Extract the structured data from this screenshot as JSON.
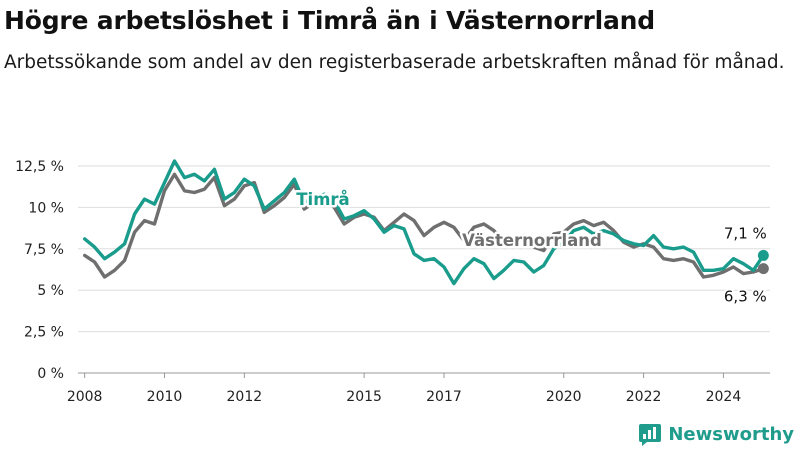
{
  "header": {
    "title": "Högre arbetslöshet i Timrå än i Västernorrland",
    "subtitle": "Arbetssökande som andel av den registerbaserade arbetskraften månad för månad."
  },
  "brand": {
    "name": "Newsworthy",
    "logo_icon": "bar-chart-icon",
    "color": "#1f9c8c"
  },
  "chart_data": {
    "type": "line",
    "title": "Högre arbetslöshet i Timrå än i Västernorrland",
    "subtitle": "Arbetssökande som andel av den registerbaserade arbetskraften månad för månad.",
    "xlabel": "",
    "ylabel": "",
    "ylim": [
      0,
      12.5
    ],
    "xlim": [
      "2007-11",
      "2025-03"
    ],
    "y_ticks": [
      {
        "value": 0,
        "label": "0 %"
      },
      {
        "value": 2.5,
        "label": "2,5 %"
      },
      {
        "value": 5,
        "label": "5 %"
      },
      {
        "value": 7.5,
        "label": "7,5 %"
      },
      {
        "value": 10,
        "label": "10 %"
      },
      {
        "value": 12.5,
        "label": "12,5 %"
      }
    ],
    "x_ticks": [
      {
        "value": "2008-01",
        "label": "2008"
      },
      {
        "value": "2010-01",
        "label": "2010"
      },
      {
        "value": "2012-01",
        "label": "2012"
      },
      {
        "value": "2015-01",
        "label": "2015"
      },
      {
        "value": "2017-01",
        "label": "2017"
      },
      {
        "value": "2020-01",
        "label": "2020"
      },
      {
        "value": "2022-01",
        "label": "2022"
      },
      {
        "value": "2024-01",
        "label": "2024"
      }
    ],
    "grid": true,
    "legend": "direct labels",
    "series": [
      {
        "name": "Västernorrland",
        "color": "#6f6f6f",
        "end_label": "6,3 %",
        "points": [
          [
            "2008-01",
            7.1
          ],
          [
            "2008-04",
            6.7
          ],
          [
            "2008-07",
            5.8
          ],
          [
            "2008-10",
            6.2
          ],
          [
            "2009-01",
            6.8
          ],
          [
            "2009-04",
            8.5
          ],
          [
            "2009-07",
            9.2
          ],
          [
            "2009-10",
            9.0
          ],
          [
            "2010-01",
            11.0
          ],
          [
            "2010-04",
            12.0
          ],
          [
            "2010-07",
            11.0
          ],
          [
            "2010-10",
            10.9
          ],
          [
            "2011-01",
            11.1
          ],
          [
            "2011-04",
            11.8
          ],
          [
            "2011-07",
            10.1
          ],
          [
            "2011-10",
            10.5
          ],
          [
            "2012-01",
            11.3
          ],
          [
            "2012-04",
            11.5
          ],
          [
            "2012-07",
            9.7
          ],
          [
            "2012-10",
            10.1
          ],
          [
            "2013-01",
            10.6
          ],
          [
            "2013-04",
            11.4
          ],
          [
            "2013-07",
            9.9
          ],
          [
            "2013-10",
            10.3
          ],
          [
            "2014-01",
            10.5
          ],
          [
            "2014-04",
            10.0
          ],
          [
            "2014-07",
            9.0
          ],
          [
            "2014-10",
            9.4
          ],
          [
            "2015-01",
            9.6
          ],
          [
            "2015-04",
            9.4
          ],
          [
            "2015-07",
            8.6
          ],
          [
            "2015-10",
            9.1
          ],
          [
            "2016-01",
            9.6
          ],
          [
            "2016-04",
            9.2
          ],
          [
            "2016-07",
            8.3
          ],
          [
            "2016-10",
            8.8
          ],
          [
            "2017-01",
            9.1
          ],
          [
            "2017-04",
            8.8
          ],
          [
            "2017-07",
            8.0
          ],
          [
            "2017-10",
            8.8
          ],
          [
            "2018-01",
            9.0
          ],
          [
            "2018-04",
            8.6
          ],
          [
            "2018-07",
            7.9
          ],
          [
            "2018-10",
            8.2
          ],
          [
            "2019-01",
            8.3
          ],
          [
            "2019-04",
            7.6
          ],
          [
            "2019-07",
            7.4
          ],
          [
            "2019-10",
            8.4
          ],
          [
            "2020-01",
            8.5
          ],
          [
            "2020-04",
            9.0
          ],
          [
            "2020-07",
            9.2
          ],
          [
            "2020-10",
            8.9
          ],
          [
            "2021-01",
            9.1
          ],
          [
            "2021-04",
            8.6
          ],
          [
            "2021-07",
            7.9
          ],
          [
            "2021-10",
            7.6
          ],
          [
            "2022-01",
            7.8
          ],
          [
            "2022-04",
            7.6
          ],
          [
            "2022-07",
            6.9
          ],
          [
            "2022-10",
            6.8
          ],
          [
            "2023-01",
            6.9
          ],
          [
            "2023-04",
            6.7
          ],
          [
            "2023-07",
            5.8
          ],
          [
            "2023-10",
            5.9
          ],
          [
            "2024-01",
            6.1
          ],
          [
            "2024-04",
            6.4
          ],
          [
            "2024-07",
            6.0
          ],
          [
            "2024-10",
            6.1
          ],
          [
            "2025-01",
            6.3
          ]
        ]
      },
      {
        "name": "Timrå",
        "color": "#1a9c8c",
        "end_label": "7,1 %",
        "points": [
          [
            "2008-01",
            8.1
          ],
          [
            "2008-04",
            7.6
          ],
          [
            "2008-07",
            6.9
          ],
          [
            "2008-10",
            7.3
          ],
          [
            "2009-01",
            7.8
          ],
          [
            "2009-04",
            9.6
          ],
          [
            "2009-07",
            10.5
          ],
          [
            "2009-10",
            10.2
          ],
          [
            "2010-01",
            11.5
          ],
          [
            "2010-04",
            12.8
          ],
          [
            "2010-07",
            11.8
          ],
          [
            "2010-10",
            12.0
          ],
          [
            "2011-01",
            11.6
          ],
          [
            "2011-04",
            12.3
          ],
          [
            "2011-07",
            10.5
          ],
          [
            "2011-10",
            10.9
          ],
          [
            "2012-01",
            11.7
          ],
          [
            "2012-04",
            11.3
          ],
          [
            "2012-07",
            9.9
          ],
          [
            "2012-10",
            10.4
          ],
          [
            "2013-01",
            10.9
          ],
          [
            "2013-04",
            11.7
          ],
          [
            "2013-07",
            10.3
          ],
          [
            "2013-10",
            10.6
          ],
          [
            "2014-01",
            10.8
          ],
          [
            "2014-04",
            10.4
          ],
          [
            "2014-07",
            9.3
          ],
          [
            "2014-10",
            9.5
          ],
          [
            "2015-01",
            9.8
          ],
          [
            "2015-04",
            9.3
          ],
          [
            "2015-07",
            8.5
          ],
          [
            "2015-10",
            8.9
          ],
          [
            "2016-01",
            8.7
          ],
          [
            "2016-04",
            7.2
          ],
          [
            "2016-07",
            6.8
          ],
          [
            "2016-10",
            6.9
          ],
          [
            "2017-01",
            6.4
          ],
          [
            "2017-04",
            5.4
          ],
          [
            "2017-07",
            6.3
          ],
          [
            "2017-10",
            6.9
          ],
          [
            "2018-01",
            6.6
          ],
          [
            "2018-04",
            5.7
          ],
          [
            "2018-07",
            6.2
          ],
          [
            "2018-10",
            6.8
          ],
          [
            "2019-01",
            6.7
          ],
          [
            "2019-04",
            6.1
          ],
          [
            "2019-07",
            6.5
          ],
          [
            "2019-10",
            7.5
          ],
          [
            "2020-01",
            7.9
          ],
          [
            "2020-04",
            8.6
          ],
          [
            "2020-07",
            8.8
          ],
          [
            "2020-10",
            8.4
          ],
          [
            "2021-01",
            8.6
          ],
          [
            "2021-04",
            8.4
          ],
          [
            "2021-07",
            8.0
          ],
          [
            "2021-10",
            7.8
          ],
          [
            "2022-01",
            7.7
          ],
          [
            "2022-04",
            8.3
          ],
          [
            "2022-07",
            7.6
          ],
          [
            "2022-10",
            7.5
          ],
          [
            "2023-01",
            7.6
          ],
          [
            "2023-04",
            7.3
          ],
          [
            "2023-07",
            6.2
          ],
          [
            "2023-10",
            6.2
          ],
          [
            "2024-01",
            6.3
          ],
          [
            "2024-04",
            6.9
          ],
          [
            "2024-07",
            6.6
          ],
          [
            "2024-10",
            6.2
          ],
          [
            "2025-01",
            7.1
          ]
        ]
      }
    ]
  }
}
